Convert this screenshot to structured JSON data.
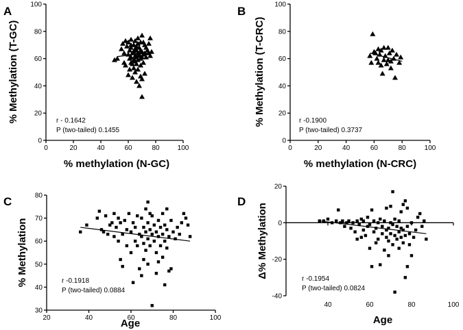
{
  "chart_data": [
    {
      "panel_label": "A",
      "type": "scatter",
      "marker": "triangle",
      "title": "",
      "xlabel": "% methylation  (N-GC)",
      "ylabel": "% Methylation  (T-GC)",
      "xlim": [
        0,
        100
      ],
      "ylim": [
        0,
        100
      ],
      "xticks": [
        0,
        20,
        40,
        60,
        80,
        100
      ],
      "yticks": [
        0,
        20,
        40,
        60,
        80,
        100
      ],
      "r_text": "r - 0.1642",
      "p_text": "P (two-tailed) 0.1455",
      "fit_line": [
        [
          52,
          61.5
        ],
        [
          78,
          64.5
        ]
      ],
      "points": [
        [
          50,
          59
        ],
        [
          52,
          60
        ],
        [
          55,
          67
        ],
        [
          56,
          71
        ],
        [
          57,
          64
        ],
        [
          57,
          57
        ],
        [
          58,
          73
        ],
        [
          58,
          55
        ],
        [
          59,
          69
        ],
        [
          60,
          72
        ],
        [
          60,
          63
        ],
        [
          60,
          48
        ],
        [
          61,
          66
        ],
        [
          61,
          60
        ],
        [
          61,
          52
        ],
        [
          62,
          70
        ],
        [
          62,
          74
        ],
        [
          62,
          68
        ],
        [
          62,
          61
        ],
        [
          62,
          57
        ],
        [
          63,
          64
        ],
        [
          63,
          56
        ],
        [
          63,
          46
        ],
        [
          64,
          70
        ],
        [
          64,
          65
        ],
        [
          64,
          59
        ],
        [
          64,
          53
        ],
        [
          65,
          73
        ],
        [
          65,
          67
        ],
        [
          65,
          62
        ],
        [
          65,
          58
        ],
        [
          65,
          50
        ],
        [
          66,
          69
        ],
        [
          66,
          66
        ],
        [
          66,
          61
        ],
        [
          66,
          56
        ],
        [
          66,
          43
        ],
        [
          67,
          75
        ],
        [
          67,
          71
        ],
        [
          67,
          64
        ],
        [
          67,
          59
        ],
        [
          67,
          52
        ],
        [
          68,
          68
        ],
        [
          68,
          63
        ],
        [
          68,
          62
        ],
        [
          68,
          40
        ],
        [
          69,
          72
        ],
        [
          69,
          66
        ],
        [
          69,
          60
        ],
        [
          69,
          55
        ],
        [
          69,
          47
        ],
        [
          70,
          77
        ],
        [
          70,
          65
        ],
        [
          70,
          61
        ],
        [
          70,
          45
        ],
        [
          70,
          32
        ],
        [
          71,
          72
        ],
        [
          71,
          63
        ],
        [
          71,
          57
        ],
        [
          72,
          70
        ],
        [
          72,
          64
        ],
        [
          72,
          49
        ],
        [
          73,
          68
        ],
        [
          73,
          61
        ],
        [
          74,
          66
        ],
        [
          75,
          71
        ],
        [
          75,
          64
        ],
        [
          76,
          62
        ],
        [
          76,
          75
        ],
        [
          77,
          65
        ]
      ]
    },
    {
      "panel_label": "B",
      "type": "scatter",
      "marker": "triangle",
      "title": "",
      "xlabel": "% methylation (N-CRC)",
      "ylabel": "% Methylation (T-CRC)",
      "xlim": [
        0,
        100
      ],
      "ylim": [
        0,
        100
      ],
      "xticks": [
        0,
        20,
        40,
        60,
        80,
        100
      ],
      "yticks": [
        0,
        20,
        40,
        60,
        80,
        100
      ],
      "r_text": "r -0.1900",
      "p_text": "P (two-tailed) 0.3737",
      "fit_line": [
        [
          57,
          64
        ],
        [
          80,
          58
        ]
      ],
      "points": [
        [
          57,
          62
        ],
        [
          58,
          57
        ],
        [
          59,
          78
        ],
        [
          60,
          65
        ],
        [
          61,
          64
        ],
        [
          62,
          60
        ],
        [
          63,
          67
        ],
        [
          63,
          57
        ],
        [
          64,
          63
        ],
        [
          65,
          66
        ],
        [
          65,
          55
        ],
        [
          66,
          49
        ],
        [
          67,
          68
        ],
        [
          67,
          59
        ],
        [
          68,
          62
        ],
        [
          69,
          56
        ],
        [
          70,
          68
        ],
        [
          70,
          59
        ],
        [
          71,
          64
        ],
        [
          72,
          58
        ],
        [
          72,
          53
        ],
        [
          73,
          66
        ],
        [
          74,
          60
        ],
        [
          75,
          46
        ],
        [
          76,
          63
        ],
        [
          78,
          57
        ],
        [
          79,
          61
        ]
      ]
    },
    {
      "panel_label": "C",
      "type": "scatter",
      "marker": "square",
      "title": "",
      "xlabel": "Age",
      "ylabel": "% Methylation",
      "xlim": [
        20,
        100
      ],
      "ylim": [
        30,
        80
      ],
      "xticks": [
        20,
        40,
        60,
        80,
        100
      ],
      "yticks": [
        30,
        40,
        50,
        60,
        70,
        80
      ],
      "r_text": "r -0.1918",
      "p_text": "P (two-tailed) 0.0884",
      "fit_line": [
        [
          36,
          66
        ],
        [
          88,
          60
        ]
      ],
      "points": [
        [
          36,
          64
        ],
        [
          39,
          67
        ],
        [
          44,
          70
        ],
        [
          45,
          73
        ],
        [
          46,
          65
        ],
        [
          47,
          64
        ],
        [
          48,
          71
        ],
        [
          49,
          63
        ],
        [
          50,
          67
        ],
        [
          51,
          68
        ],
        [
          52,
          72
        ],
        [
          52,
          62
        ],
        [
          53,
          66
        ],
        [
          54,
          70
        ],
        [
          54,
          60
        ],
        [
          55,
          68
        ],
        [
          55,
          52
        ],
        [
          56,
          63
        ],
        [
          56,
          49
        ],
        [
          57,
          69
        ],
        [
          58,
          65
        ],
        [
          58,
          58
        ],
        [
          59,
          72
        ],
        [
          60,
          64
        ],
        [
          60,
          55
        ],
        [
          61,
          68
        ],
        [
          61,
          42
        ],
        [
          62,
          66
        ],
        [
          62,
          60
        ],
        [
          63,
          71
        ],
        [
          63,
          58
        ],
        [
          64,
          63
        ],
        [
          64,
          48
        ],
        [
          65,
          70
        ],
        [
          65,
          62
        ],
        [
          65,
          45
        ],
        [
          66,
          66
        ],
        [
          66,
          59
        ],
        [
          66,
          52
        ],
        [
          67,
          74
        ],
        [
          67,
          64
        ],
        [
          67,
          56
        ],
        [
          68,
          77
        ],
        [
          68,
          68
        ],
        [
          68,
          61
        ],
        [
          68,
          50
        ],
        [
          69,
          72
        ],
        [
          69,
          65
        ],
        [
          69,
          58
        ],
        [
          70,
          71
        ],
        [
          70,
          63
        ],
        [
          70,
          32
        ],
        [
          71,
          67
        ],
        [
          71,
          60
        ],
        [
          72,
          64
        ],
        [
          72,
          55
        ],
        [
          72,
          46
        ],
        [
          73,
          69
        ],
        [
          73,
          62
        ],
        [
          73,
          51
        ],
        [
          74,
          66
        ],
        [
          74,
          58
        ],
        [
          75,
          72
        ],
        [
          75,
          63
        ],
        [
          75,
          53
        ],
        [
          76,
          67
        ],
        [
          76,
          60
        ],
        [
          76,
          41
        ],
        [
          77,
          74
        ],
        [
          77,
          65
        ],
        [
          77,
          57
        ],
        [
          78,
          62
        ],
        [
          78,
          47
        ],
        [
          79,
          69
        ],
        [
          79,
          48
        ],
        [
          80,
          64
        ],
        [
          81,
          61
        ],
        [
          82,
          66
        ],
        [
          83,
          63
        ],
        [
          84,
          68
        ],
        [
          85,
          72
        ],
        [
          86,
          70
        ],
        [
          87,
          67
        ],
        [
          88,
          62
        ]
      ]
    },
    {
      "panel_label": "D",
      "type": "scatter",
      "marker": "square",
      "title": "",
      "xlabel": "Age",
      "ylabel": "Δ% Methylation",
      "xlim": [
        20,
        100
      ],
      "ylim": [
        -40,
        20
      ],
      "xticks": [
        40,
        60,
        80,
        100
      ],
      "yticks": [
        -40,
        -20,
        0,
        20
      ],
      "r_text": "r -0.1954",
      "p_text": "P (two-tailed) 0.0824",
      "fit_line": [
        [
          36,
          1
        ],
        [
          87,
          -6
        ]
      ],
      "points": [
        [
          36,
          1
        ],
        [
          38,
          1
        ],
        [
          40,
          2
        ],
        [
          42,
          0
        ],
        [
          44,
          1
        ],
        [
          45,
          7
        ],
        [
          46,
          0
        ],
        [
          47,
          1
        ],
        [
          48,
          -2
        ],
        [
          49,
          0
        ],
        [
          50,
          1
        ],
        [
          51,
          -3
        ],
        [
          52,
          0
        ],
        [
          53,
          -5
        ],
        [
          54,
          -9
        ],
        [
          54,
          1
        ],
        [
          55,
          -1
        ],
        [
          56,
          -8
        ],
        [
          56,
          2
        ],
        [
          57,
          -4
        ],
        [
          57,
          1
        ],
        [
          58,
          -7
        ],
        [
          59,
          -2
        ],
        [
          59,
          3
        ],
        [
          60,
          -1
        ],
        [
          60,
          -14
        ],
        [
          61,
          -24
        ],
        [
          61,
          7
        ],
        [
          62,
          -5
        ],
        [
          62,
          1
        ],
        [
          63,
          -3
        ],
        [
          63,
          -11
        ],
        [
          64,
          0
        ],
        [
          64,
          -9
        ],
        [
          65,
          -23
        ],
        [
          65,
          2
        ],
        [
          66,
          -6
        ],
        [
          66,
          -2
        ],
        [
          67,
          -15
        ],
        [
          67,
          1
        ],
        [
          68,
          -4
        ],
        [
          68,
          -8
        ],
        [
          68,
          8
        ],
        [
          69,
          -10
        ],
        [
          69,
          -3
        ],
        [
          69,
          -18
        ],
        [
          70,
          0
        ],
        [
          70,
          -6
        ],
        [
          70,
          9
        ],
        [
          71,
          -12
        ],
        [
          71,
          -1
        ],
        [
          71,
          17
        ],
        [
          72,
          -38
        ],
        [
          72,
          -7
        ],
        [
          72,
          2
        ],
        [
          73,
          -9
        ],
        [
          73,
          -2
        ],
        [
          74,
          -14
        ],
        [
          74,
          -5
        ],
        [
          74,
          1
        ],
        [
          75,
          -8
        ],
        [
          75,
          -3
        ],
        [
          75,
          6
        ],
        [
          76,
          -11
        ],
        [
          76,
          -4
        ],
        [
          76,
          10
        ],
        [
          77,
          -30
        ],
        [
          77,
          -7
        ],
        [
          77,
          12
        ],
        [
          78,
          -24
        ],
        [
          78,
          -2
        ],
        [
          78,
          8
        ],
        [
          79,
          -12
        ],
        [
          79,
          -6
        ],
        [
          80,
          0
        ],
        [
          80,
          -18
        ],
        [
          81,
          -8
        ],
        [
          82,
          -4
        ],
        [
          83,
          3
        ],
        [
          84,
          5
        ],
        [
          85,
          -2
        ],
        [
          86,
          1
        ],
        [
          87,
          -9
        ]
      ]
    }
  ]
}
